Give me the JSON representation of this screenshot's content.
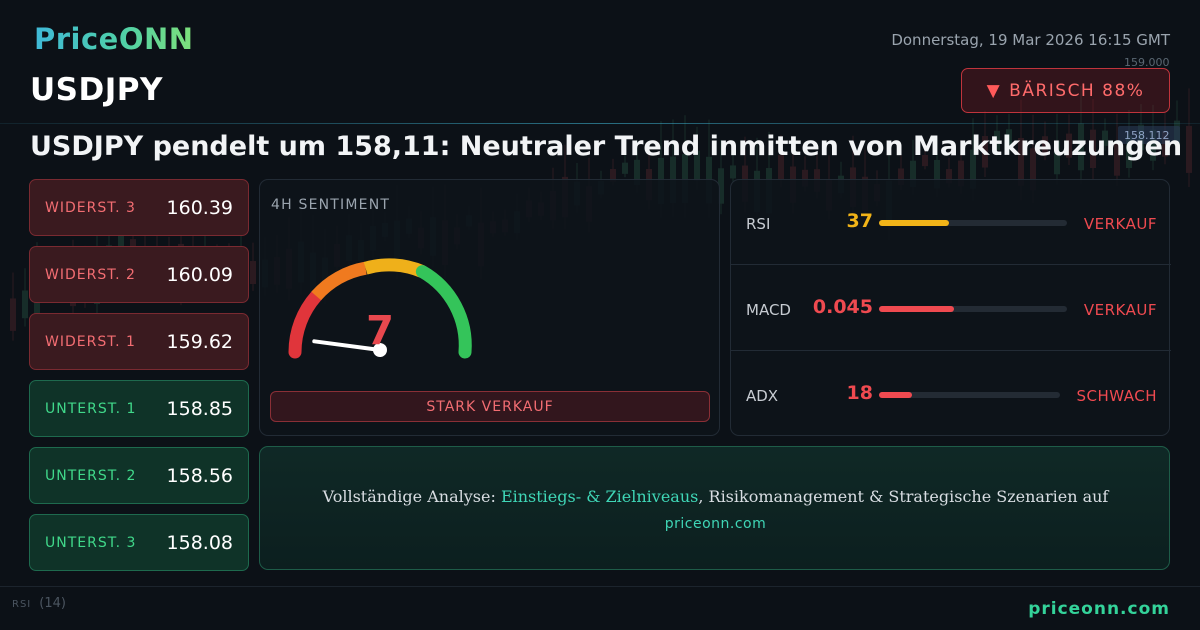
{
  "brand": {
    "logo": "PriceONN",
    "footer": "priceonn.com"
  },
  "datetime": "Donnerstag, 19 Mar 2026 16:15 GMT",
  "symbol": "USDJPY",
  "badge": {
    "label": "BÄRISCH 88%",
    "color": "#ff6b6b"
  },
  "headline": "USDJPY pendelt um 158,11: Neutraler Trend inmitten von Marktkreuzungen",
  "levels": [
    {
      "label": "WIDERST. 3",
      "value": "160.39",
      "kind": "resistance"
    },
    {
      "label": "WIDERST. 2",
      "value": "160.09",
      "kind": "resistance"
    },
    {
      "label": "WIDERST. 1",
      "value": "159.62",
      "kind": "resistance"
    },
    {
      "label": "UNTERST. 1",
      "value": "158.85",
      "kind": "support"
    },
    {
      "label": "UNTERST. 2",
      "value": "158.56",
      "kind": "support"
    },
    {
      "label": "UNTERST. 3",
      "value": "158.08",
      "kind": "support"
    }
  ],
  "sentiment": {
    "title": "4H SENTIMENT",
    "score": "7",
    "score_fraction": 0.07,
    "signal": "STARK VERKAUF"
  },
  "indicators": [
    {
      "name": "RSI",
      "value": "37",
      "fill_fraction": 0.37,
      "signal": "VERKAUF",
      "value_color": "#f2b418",
      "bar_color": "#f2b418",
      "signal_color": "#ef4a50"
    },
    {
      "name": "MACD",
      "value": "0.045",
      "fill_fraction": 0.4,
      "signal": "VERKAUF",
      "value_color": "#ef4a50",
      "bar_color": "#ef4a50",
      "signal_color": "#ef4a50"
    },
    {
      "name": "ADX",
      "value": "18",
      "fill_fraction": 0.18,
      "signal": "SCHWACH",
      "value_color": "#ef4a50",
      "bar_color": "#ef4a50",
      "signal_color": "#ef4a50"
    }
  ],
  "cta": {
    "prefix": "Vollständige Analyse: ",
    "highlight": "Einstiegs- & Zielniveaus",
    "suffix": ", Risikomanagement & Strategische Szenarien auf",
    "link": "priceonn.com"
  },
  "chart_bg": {
    "price_tags": [
      "159.000",
      "158.112"
    ],
    "rsi_label": "RSI",
    "rsi_period": "(14)"
  }
}
